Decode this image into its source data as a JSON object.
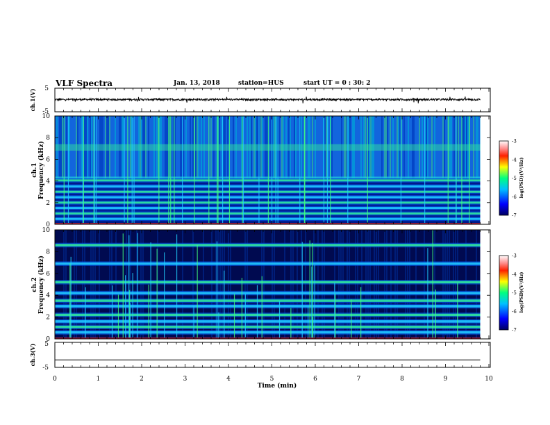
{
  "header": {
    "title": "VLF Spectra",
    "date": "Jan. 13, 2018",
    "station": "station=HUS",
    "start": "start UT =  0 : 30: 2"
  },
  "chart_data": [
    {
      "type": "line",
      "name": "ch1-waveform",
      "ylabel": "ch.1(V)",
      "ylim": [
        -5,
        5
      ],
      "yticks": [
        "5",
        "-5"
      ],
      "xlim": [
        0,
        10
      ],
      "baseline": 0.2,
      "amplitude": 0.4
    },
    {
      "type": "heatmap",
      "name": "ch1-spectrogram",
      "ylabel_channel": "ch.1",
      "ylabel": "Frequency (kHz)",
      "ylim": [
        0,
        10
      ],
      "yticks": [
        "0",
        "2",
        "4",
        "6",
        "8",
        "10"
      ],
      "xlim": [
        0,
        10
      ],
      "bands_khz": [
        0.5,
        1.0,
        1.5,
        2.0,
        2.5,
        3.0,
        3.5,
        4.05
      ],
      "broadband_range_khz": [
        4.2,
        10
      ],
      "colorbar": {
        "label": "log(PSD)(V²/Hz)",
        "ticks": [
          "-3",
          "-4",
          "-5",
          "-6",
          "-7"
        ]
      }
    },
    {
      "type": "heatmap",
      "name": "ch2-spectrogram",
      "ylabel_channel": "ch.2",
      "ylabel": "Frequency (kHz)",
      "ylim": [
        0,
        10
      ],
      "yticks": [
        "0",
        "2",
        "4",
        "6",
        "8",
        "10"
      ],
      "xlim": [
        0,
        10
      ],
      "bands_khz": [
        0.6,
        1.1,
        1.6,
        2.2,
        3.0,
        3.5,
        4.2,
        5.2,
        6.9,
        8.6
      ],
      "colorbar": {
        "label": "log(PSD)(V²/Hz)",
        "ticks": [
          "-3",
          "-4",
          "-5",
          "-6",
          "-7"
        ]
      }
    },
    {
      "type": "line",
      "name": "ch3-waveform",
      "ylabel": "ch.3(V)",
      "ylim": [
        -5,
        5
      ],
      "yticks": [
        "5",
        "-5"
      ],
      "xlim": [
        0,
        10
      ],
      "baseline": -2.0,
      "amplitude": 0.0,
      "xlabel": "Time (min)",
      "xticks": [
        "0",
        "1",
        "2",
        "3",
        "4",
        "5",
        "6",
        "7",
        "8",
        "9",
        "10"
      ]
    }
  ]
}
